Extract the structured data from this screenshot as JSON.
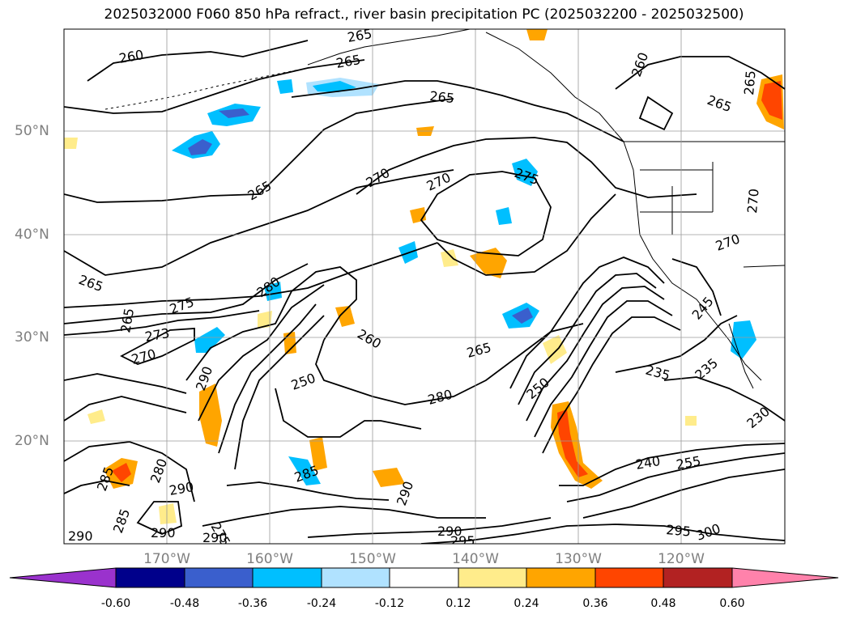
{
  "title": "2025032000 F060 850 hPa refract., river basin precipitation PC (2025032200 - 2025032500)",
  "lat_labels": [
    "50°N",
    "40°N",
    "30°N",
    "20°N"
  ],
  "lon_labels": [
    "170°W",
    "160°W",
    "150°W",
    "140°W",
    "130°W",
    "120°W"
  ],
  "contour_labels": [
    "260",
    "265",
    "265",
    "265",
    "265",
    "260",
    "265",
    "265",
    "270",
    "270",
    "275",
    "270",
    "270",
    "265",
    "280",
    "275",
    "273",
    "270",
    "265",
    "260",
    "265",
    "280",
    "250",
    "235",
    "235",
    "240",
    "255",
    "230",
    "295",
    "300",
    "290",
    "290",
    "290",
    "285",
    "290",
    "290",
    "295",
    "290",
    "280",
    "275",
    "290",
    "285",
    "250",
    "245",
    "285"
  ],
  "colorbar": {
    "ticks": [
      "-0.60",
      "-0.48",
      "-0.36",
      "-0.24",
      "-0.12",
      "0.12",
      "0.24",
      "0.36",
      "0.48",
      "0.60"
    ],
    "colors": [
      "#9a32cd",
      "#00008b",
      "#3a5fcd",
      "#00bfff",
      "#b0e2ff",
      "#ffffff",
      "#ffec8b",
      "#ffa500",
      "#ff4500",
      "#b22222",
      "#ff82ab"
    ]
  }
}
